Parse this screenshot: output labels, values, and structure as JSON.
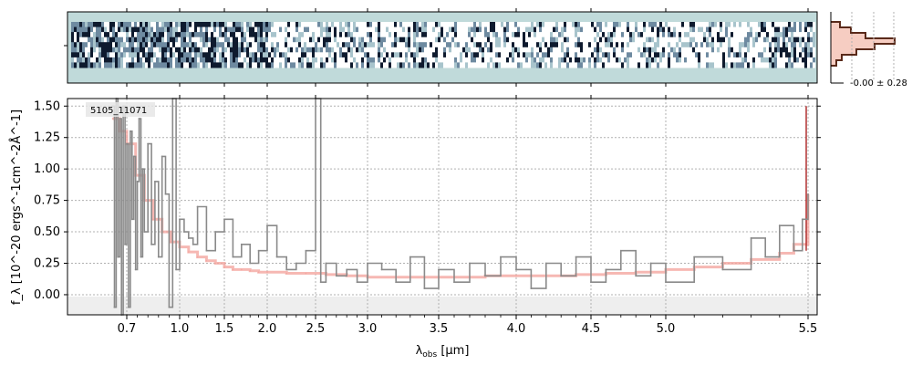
{
  "chart_data": {
    "type": "line",
    "object_label": "5105_11071",
    "xlabel_main": "λ",
    "xlabel_sub": "obs",
    "xlabel_unit": " [μm]",
    "ylabel": "f_λ [10^-20 ergs^-1cm^-2Å^-1]",
    "x_tick_labels": [
      "0.7",
      "1.0",
      "1.5",
      "2.0",
      "2.5",
      "3.0",
      "3.5",
      "4.0",
      "4.5",
      "5.0",
      "5.5"
    ],
    "y_tick_labels": [
      "0.00",
      "0.25",
      "0.50",
      "0.75",
      "1.00",
      "1.25",
      "1.50"
    ],
    "y_ticks": [
      0.0,
      0.25,
      0.5,
      0.75,
      1.0,
      1.25,
      1.5
    ],
    "ylim": [
      -0.16,
      1.56
    ],
    "hist_label": "-0.00 ± 0.28",
    "grid": true,
    "colors": {
      "data_line": "#8a8a8a",
      "model_line": "#f4a6a0",
      "model_edge": "#b03030",
      "image_bg": "#c0dada",
      "hist_fill": "#f6cdc2",
      "hist_line": "#5a2a1a"
    },
    "series": [
      {
        "role": "observed",
        "x": [
          0.62,
          0.63,
          0.64,
          0.65,
          0.66,
          0.67,
          0.68,
          0.69,
          0.7,
          0.71,
          0.72,
          0.73,
          0.74,
          0.75,
          0.76,
          0.77,
          0.78,
          0.79,
          0.8,
          0.82,
          0.84,
          0.86,
          0.88,
          0.9,
          0.92,
          0.94,
          0.96,
          0.98,
          1.0,
          1.05,
          1.1,
          1.15,
          1.2,
          1.3,
          1.4,
          1.5,
          1.6,
          1.7,
          1.8,
          1.9,
          2.0,
          2.1,
          2.2,
          2.3,
          2.4,
          2.5,
          2.55,
          2.6,
          2.7,
          2.8,
          2.9,
          3.0,
          3.1,
          3.2,
          3.3,
          3.4,
          3.5,
          3.6,
          3.7,
          3.8,
          3.9,
          4.0,
          4.1,
          4.2,
          4.3,
          4.4,
          4.5,
          4.6,
          4.7,
          4.8,
          4.9,
          5.0,
          5.1,
          5.2,
          5.3,
          5.35,
          5.4,
          5.45,
          5.48,
          5.5
        ],
        "y": [
          1.5,
          -0.1,
          1.6,
          0.3,
          1.4,
          -0.2,
          1.5,
          0.4,
          1.2,
          -0.1,
          1.3,
          0.6,
          1.1,
          0.2,
          0.9,
          1.4,
          0.3,
          1.0,
          0.5,
          1.2,
          0.4,
          0.9,
          0.3,
          1.1,
          0.8,
          -0.1,
          1.6,
          0.2,
          0.6,
          0.5,
          0.45,
          0.4,
          0.7,
          0.35,
          0.5,
          0.6,
          0.3,
          0.4,
          0.25,
          0.35,
          0.55,
          0.3,
          0.2,
          0.25,
          0.35,
          1.6,
          0.1,
          0.25,
          0.15,
          0.2,
          0.1,
          0.25,
          0.2,
          0.1,
          0.3,
          0.05,
          0.2,
          0.1,
          0.25,
          0.15,
          0.3,
          0.2,
          0.05,
          0.25,
          0.15,
          0.3,
          0.1,
          0.2,
          0.35,
          0.15,
          0.25,
          0.1,
          0.3,
          0.2,
          0.45,
          0.3,
          0.55,
          0.35,
          0.6,
          0.8
        ]
      },
      {
        "role": "model",
        "x": [
          0.62,
          0.66,
          0.7,
          0.75,
          0.8,
          0.85,
          0.9,
          0.95,
          1.0,
          1.1,
          1.2,
          1.3,
          1.4,
          1.5,
          1.6,
          1.7,
          1.8,
          1.9,
          2.0,
          2.2,
          2.4,
          2.6,
          2.8,
          3.0,
          3.2,
          3.4,
          3.6,
          3.8,
          4.0,
          4.2,
          4.4,
          4.6,
          4.8,
          5.0,
          5.1,
          5.2,
          5.3,
          5.4,
          5.45,
          5.5
        ],
        "y": [
          1.4,
          1.3,
          1.2,
          0.95,
          0.75,
          0.6,
          0.5,
          0.42,
          0.38,
          0.34,
          0.3,
          0.27,
          0.25,
          0.22,
          0.2,
          0.2,
          0.19,
          0.18,
          0.18,
          0.17,
          0.17,
          0.16,
          0.15,
          0.14,
          0.14,
          0.14,
          0.14,
          0.15,
          0.15,
          0.15,
          0.16,
          0.17,
          0.18,
          0.2,
          0.22,
          0.25,
          0.28,
          0.33,
          0.4,
          0.8
        ]
      }
    ]
  }
}
